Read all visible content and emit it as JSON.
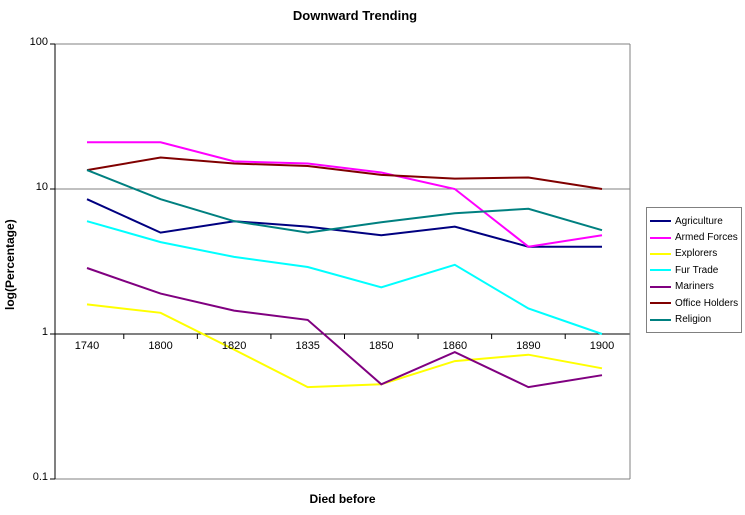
{
  "chart": {
    "title": "Downward Trending",
    "xlabel": "Died before",
    "ylabel": "log(Percentage)"
  },
  "chart_data": {
    "type": "line",
    "title": "Downward Trending",
    "xlabel": "Died before",
    "ylabel": "log(Percentage)",
    "y_scale": "log",
    "ylim": [
      0.1,
      100
    ],
    "y_tick_labels": [
      "100",
      "10",
      "1",
      "0.1"
    ],
    "y_tick_values": [
      100,
      10,
      1,
      0.1
    ],
    "grid": true,
    "legend_position": "right",
    "categories": [
      "1740",
      "1800",
      "1820",
      "1835",
      "1850",
      "1860",
      "1890",
      "1900"
    ],
    "series": [
      {
        "name": "Agriculture",
        "color": "#000080",
        "values": [
          8.5,
          5,
          6,
          5.5,
          4.8,
          5.5,
          4,
          4
        ]
      },
      {
        "name": "Armed Forces",
        "color": "#FF00FF",
        "values": [
          21,
          21,
          15.5,
          15,
          13,
          10,
          4,
          4.8
        ]
      },
      {
        "name": "Explorers",
        "color": "#FFFF00",
        "values": [
          1.6,
          1.4,
          0.78,
          0.43,
          0.45,
          0.65,
          0.72,
          0.58
        ]
      },
      {
        "name": "Fur Trade",
        "color": "#00FFFF",
        "values": [
          6,
          4.3,
          3.4,
          2.9,
          2.1,
          3,
          1.5,
          1
        ]
      },
      {
        "name": "Mariners",
        "color": "#800080",
        "values": [
          2.85,
          1.9,
          1.45,
          1.25,
          0.45,
          0.75,
          0.43,
          0.52
        ]
      },
      {
        "name": "Office Holders",
        "color": "#800000",
        "values": [
          13.5,
          16.5,
          15,
          14.4,
          12.5,
          11.8,
          12,
          10
        ]
      },
      {
        "name": "Religion",
        "color": "#008080",
        "values": [
          13.5,
          8.5,
          6,
          5,
          5.9,
          6.8,
          7.3,
          5.2
        ]
      }
    ],
    "colors": {
      "gridline": "#808080",
      "axis": "#000000",
      "background": "#ffffff"
    }
  }
}
